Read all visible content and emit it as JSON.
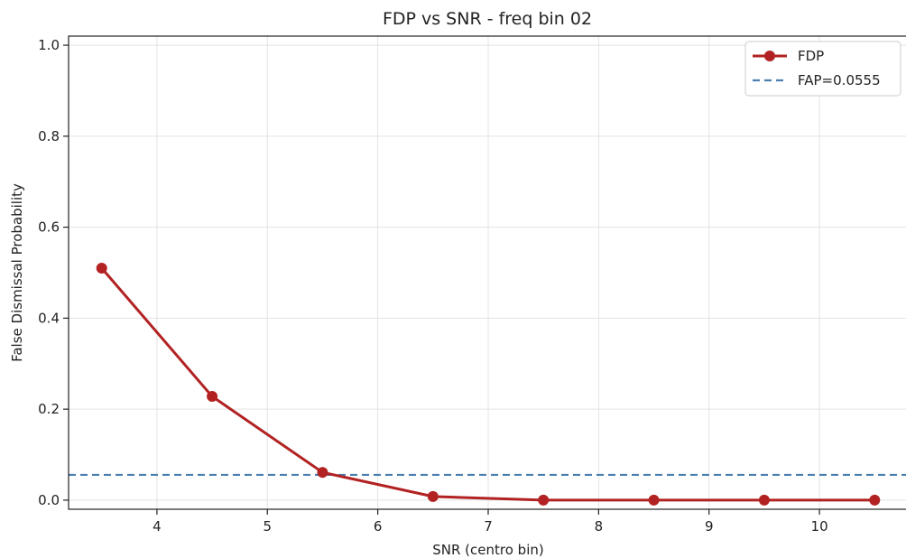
{
  "chart_data": {
    "type": "line",
    "title": "FDP vs SNR  -  freq bin 02",
    "xlabel": "SNR (centro bin)",
    "ylabel": "False Dismissal Probability",
    "xlim": [
      3.2,
      10.8
    ],
    "ylim": [
      -0.02,
      1.02
    ],
    "xticks": [
      4,
      5,
      6,
      7,
      8,
      9,
      10
    ],
    "xtick_labels": [
      "4",
      "5",
      "6",
      "7",
      "8",
      "9",
      "10"
    ],
    "yticks": [
      0.0,
      0.2,
      0.4,
      0.6,
      0.8,
      1.0
    ],
    "ytick_labels": [
      "0.0",
      "0.2",
      "0.4",
      "0.6",
      "0.8",
      "1.0"
    ],
    "grid": true,
    "legend_position": "top-right",
    "series": [
      {
        "name": "FDP",
        "color": "#b22222",
        "style": "solid-with-circle-markers",
        "x": [
          3.5,
          4.5,
          5.5,
          6.5,
          7.5,
          8.5,
          9.5,
          10.5
        ],
        "y": [
          0.51,
          0.228,
          0.061,
          0.008,
          0.0,
          0.0,
          0.0,
          0.0
        ]
      }
    ],
    "reference_lines": [
      {
        "name": "FAP=0.0555",
        "orientation": "horizontal",
        "value": 0.0555,
        "color": "#4a7fb0",
        "style": "dashed"
      }
    ]
  }
}
